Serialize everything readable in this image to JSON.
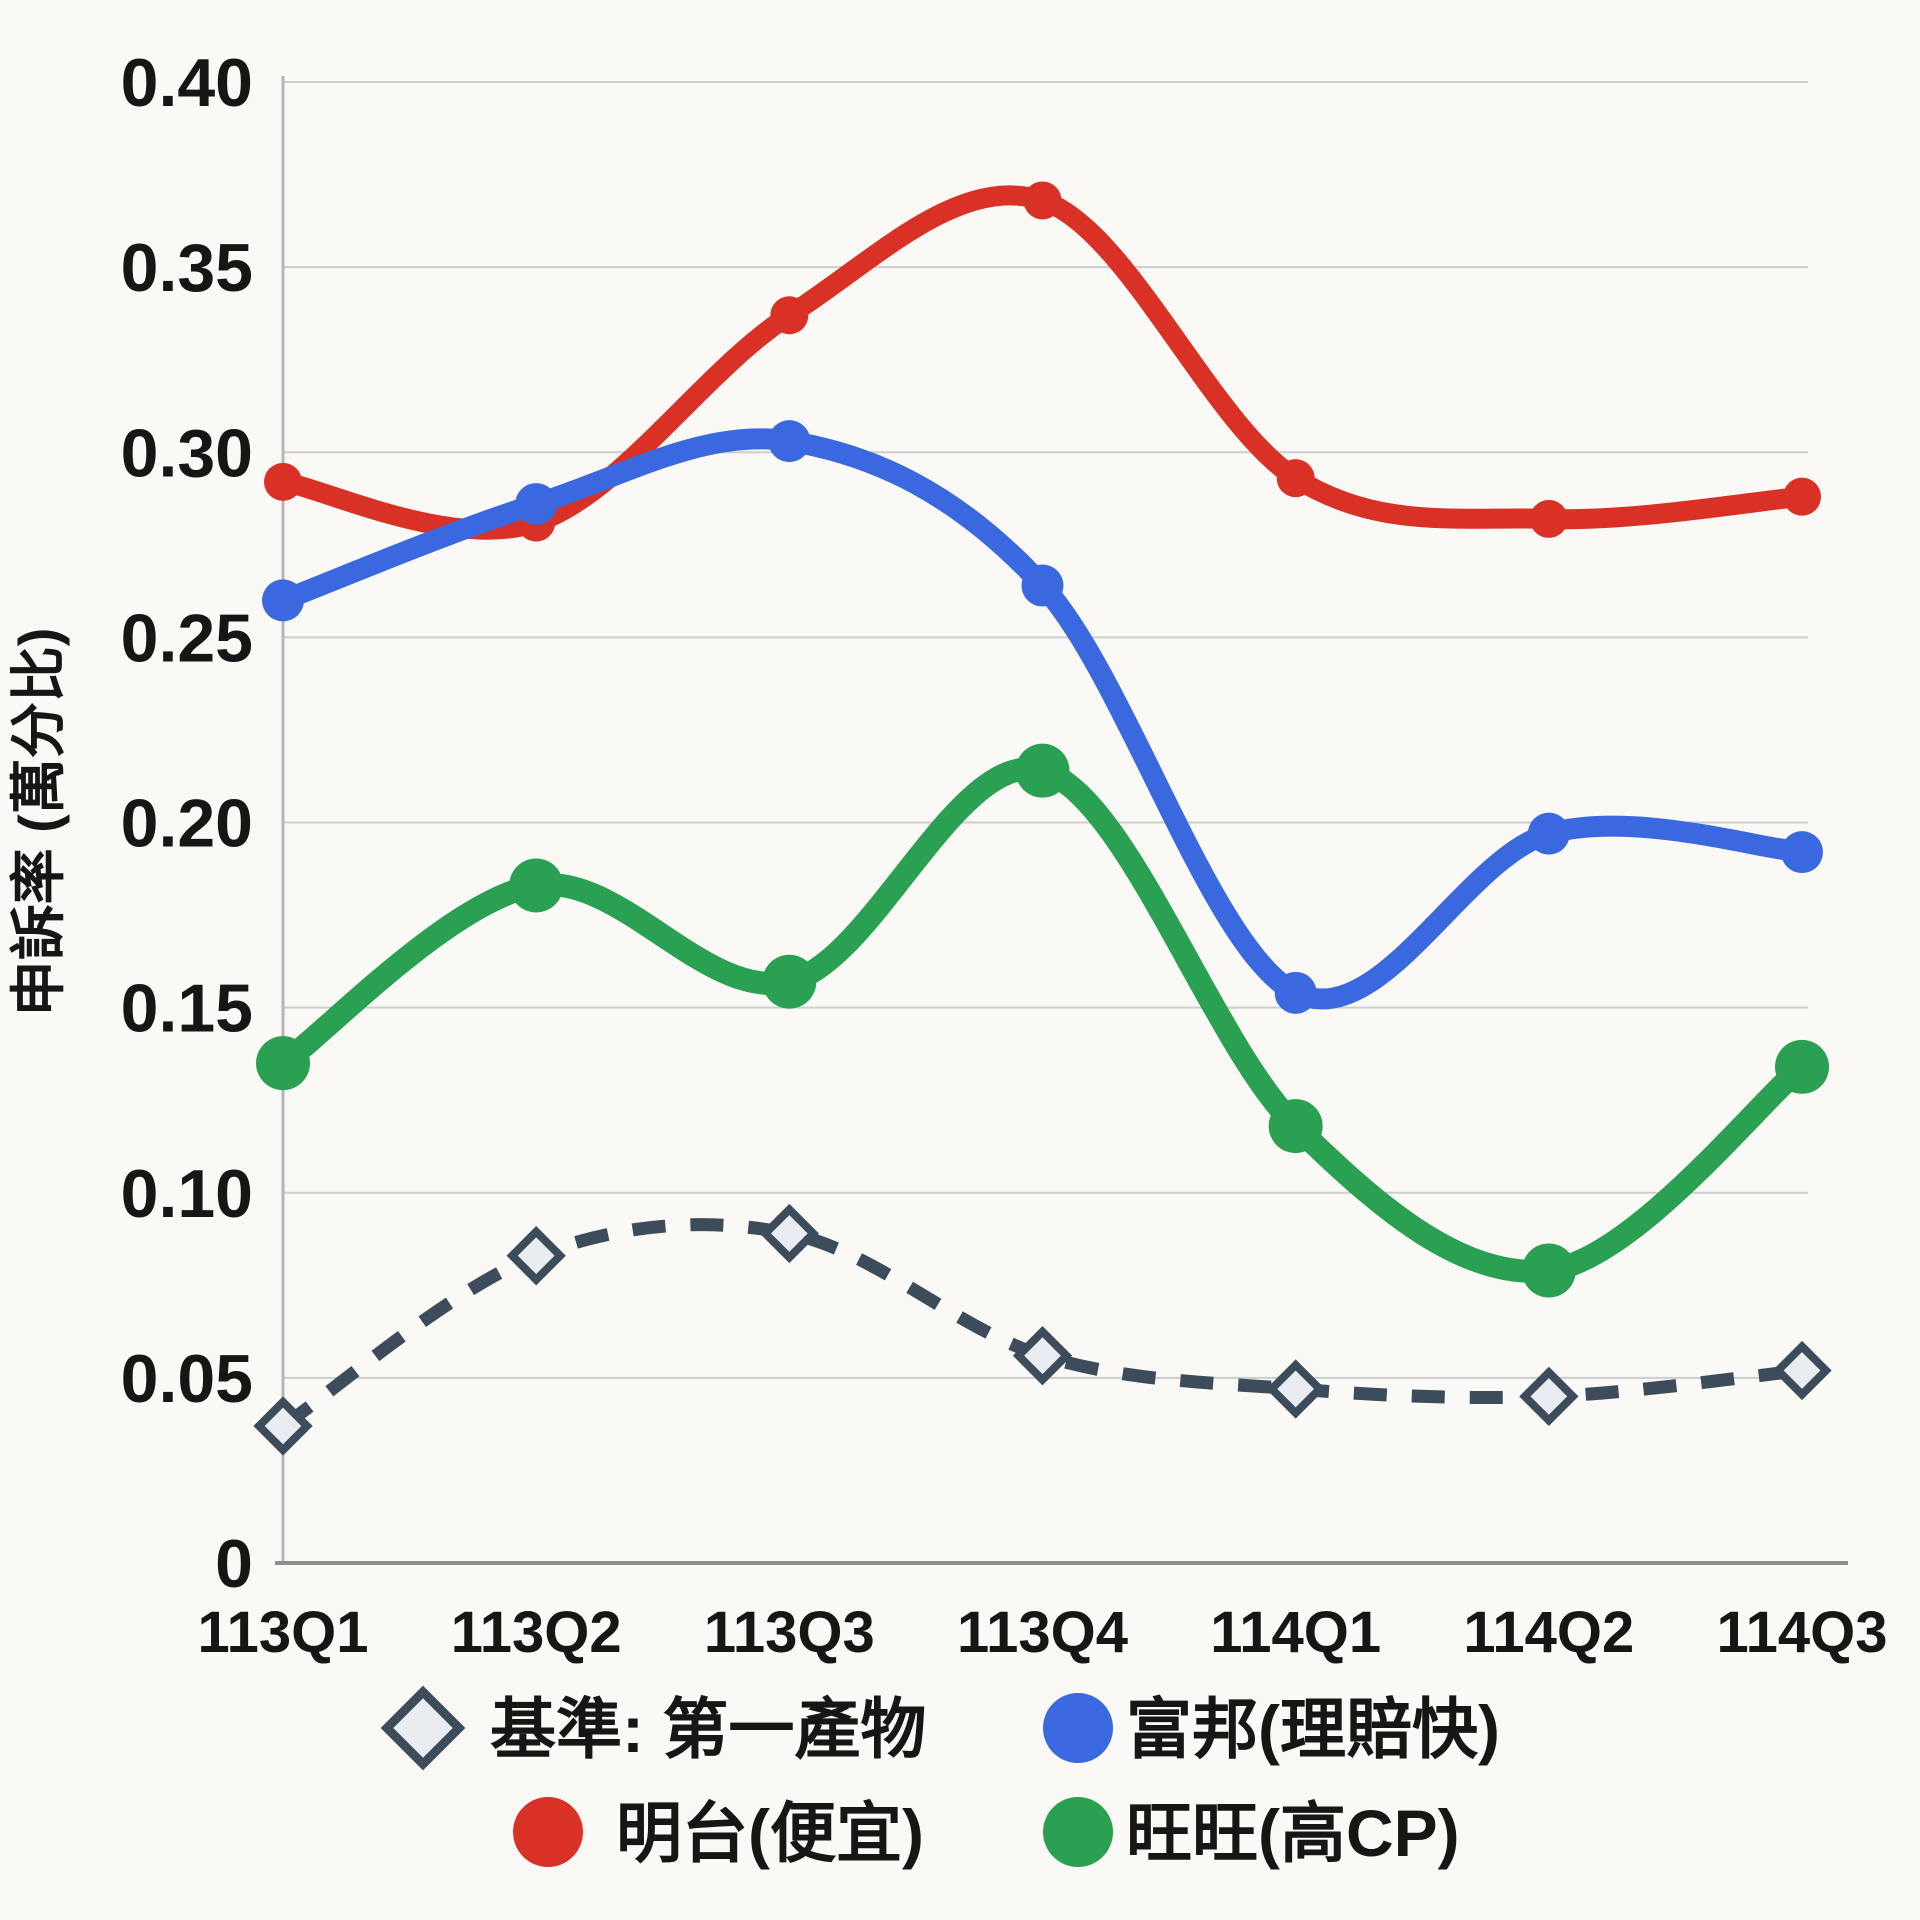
{
  "chart_data": {
    "type": "line",
    "title": "",
    "xlabel": "",
    "ylabel": "申訴率 (萬分比)",
    "categories": [
      "113Q1",
      "113Q2",
      "113Q3",
      "113Q4",
      "114Q1",
      "114Q2",
      "114Q3"
    ],
    "ylim": [
      0,
      0.4
    ],
    "ytick_step": 0.05,
    "ytick_labels": [
      "0.40",
      "0.35",
      "0.30",
      "0.25",
      "0.20",
      "0.15",
      "0.10",
      "0.05",
      "0"
    ],
    "grid": true,
    "legend_position": "bottom",
    "series": [
      {
        "name": "基準: 第一產物",
        "color": "#3d4c5b",
        "marker": "diamond",
        "marker_fill": "#e9edf1",
        "line_style": "dashed",
        "values": [
          0.037,
          0.083,
          0.089,
          0.056,
          0.047,
          0.045,
          0.052
        ]
      },
      {
        "name": "富邦(理賠快)",
        "color": "#3a68df",
        "marker": "circle",
        "line_style": "solid",
        "values": [
          0.26,
          0.286,
          0.303,
          0.264,
          0.154,
          0.197,
          0.192
        ]
      },
      {
        "name": "明台(便宜)",
        "color": "#d93125",
        "marker": "circle",
        "line_style": "solid",
        "values": [
          0.292,
          0.281,
          0.337,
          0.368,
          0.293,
          0.282,
          0.288
        ]
      },
      {
        "name": "旺旺(高CP)",
        "color": "#2aa053",
        "marker": "circle",
        "line_style": "solid",
        "values": [
          0.135,
          0.183,
          0.157,
          0.214,
          0.118,
          0.079,
          0.134
        ]
      }
    ],
    "colors": {
      "gridline": "#cdcdcd",
      "y_axis_line": "#b5b5b5",
      "x_axis_line": "#8e8e8e",
      "text": "#161616",
      "background": "#faf9f6"
    }
  }
}
